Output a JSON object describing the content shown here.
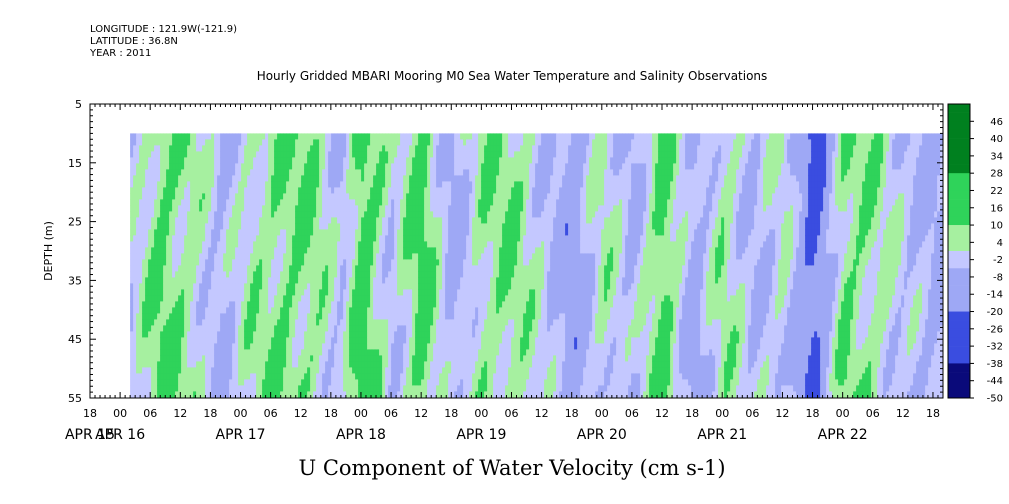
{
  "header": {
    "longitude": "LONGITUDE : 121.9W(-121.9)",
    "latitude": "LATITUDE : 36.8N",
    "year": "YEAR : 2011"
  },
  "chart_data": {
    "type": "heatmap",
    "title": "Hourly Gridded MBARI Mooring M0 Sea Water Temperature and Salinity Observations",
    "xlabel": "U Component of Water Velocity (cm s-1)",
    "ylabel": "DEPTH (m)",
    "ylim": [
      55,
      5
    ],
    "y_ticks": [
      5,
      15,
      25,
      35,
      45,
      55
    ],
    "data_depth_range": [
      10,
      55
    ],
    "time_range": [
      "2011-04-15 18:00",
      "2011-04-22 20:00"
    ],
    "data_start": "2011-04-16 02:00",
    "hour_tick_labels": [
      "18",
      "00",
      "06",
      "12",
      "18",
      "00",
      "06",
      "12",
      "18",
      "00",
      "06",
      "12",
      "18",
      "00",
      "06",
      "12",
      "18",
      "00",
      "06",
      "12",
      "18",
      "00",
      "06",
      "12",
      "18",
      "00",
      "06",
      "12",
      "18"
    ],
    "date_labels": [
      "APR 15",
      "APR 16",
      "APR 17",
      "APR 18",
      "APR 19",
      "APR 20",
      "APR 21",
      "APR 22"
    ],
    "colorbar_levels": [
      "46",
      "40",
      "34",
      "28",
      "22",
      "16",
      "10",
      "4",
      "-2",
      "-8",
      "-14",
      "-20",
      "-26",
      "-32",
      "-38",
      "-44",
      "-50"
    ],
    "colorbar_range": [
      -50,
      52
    ],
    "colors": {
      "strong_positive": "#00801f",
      "positive": "#2fd35a",
      "weak_positive": "#a6f0a0",
      "near_zero": "#c4c8ff",
      "weak_negative": "#9ea8f5",
      "negative": "#3a4de0",
      "strong_negative": "#0a0a7a"
    },
    "velocity_pattern": [
      {
        "time": "2011-04-16 02:00",
        "u": -4
      },
      {
        "time": "2011-04-16 08:00",
        "u": 12
      },
      {
        "time": "2011-04-16 14:00",
        "u": 6
      },
      {
        "time": "2011-04-16 20:00",
        "u": -8
      },
      {
        "time": "2011-04-17 02:00",
        "u": 4
      },
      {
        "time": "2011-04-17 08:00",
        "u": 10
      },
      {
        "time": "2011-04-17 14:00",
        "u": 8
      },
      {
        "time": "2011-04-17 20:00",
        "u": -6
      },
      {
        "time": "2011-04-18 00:00",
        "u": 18
      },
      {
        "time": "2011-04-18 06:00",
        "u": -4
      },
      {
        "time": "2011-04-18 12:00",
        "u": 14
      },
      {
        "time": "2011-04-18 18:00",
        "u": -10
      },
      {
        "time": "2011-04-19 00:00",
        "u": 6
      },
      {
        "time": "2011-04-19 06:00",
        "u": 8
      },
      {
        "time": "2011-04-19 12:00",
        "u": -2
      },
      {
        "time": "2011-04-19 18:00",
        "u": -14
      },
      {
        "time": "2011-04-20 00:00",
        "u": 4
      },
      {
        "time": "2011-04-20 06:00",
        "u": -8
      },
      {
        "time": "2011-04-20 12:00",
        "u": 16
      },
      {
        "time": "2011-04-20 18:00",
        "u": -12
      },
      {
        "time": "2011-04-21 00:00",
        "u": 6
      },
      {
        "time": "2011-04-21 06:00",
        "u": -6
      },
      {
        "time": "2011-04-21 12:00",
        "u": 2
      },
      {
        "time": "2011-04-21 18:00",
        "u": -26
      },
      {
        "time": "2011-04-22 00:00",
        "u": 10
      },
      {
        "time": "2011-04-22 06:00",
        "u": 6
      },
      {
        "time": "2011-04-22 12:00",
        "u": -4
      },
      {
        "time": "2011-04-22 18:00",
        "u": -8
      }
    ]
  }
}
